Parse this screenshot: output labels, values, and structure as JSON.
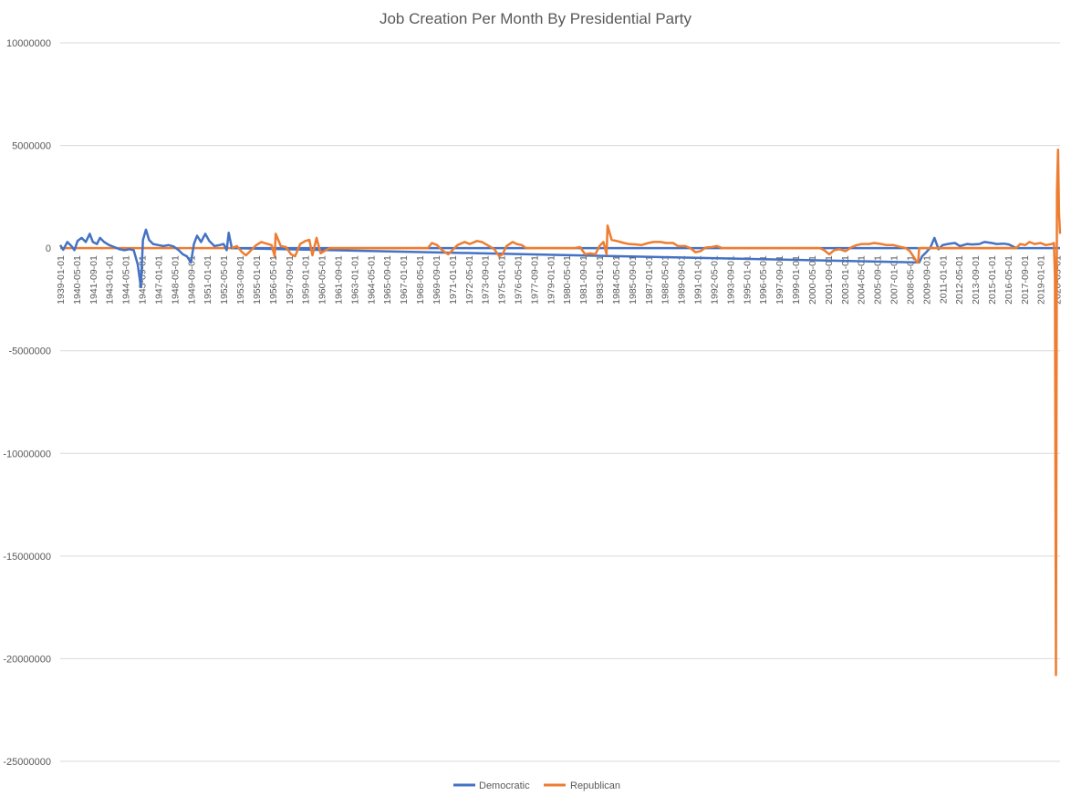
{
  "chart_data": {
    "type": "line",
    "title": "Job Creation Per Month By Presidential Party",
    "xlabel": "",
    "ylabel": "",
    "ylim": [
      -25000000,
      10000000
    ],
    "yticks": [
      10000000,
      5000000,
      0,
      -5000000,
      -10000000,
      -15000000,
      -20000000,
      -25000000
    ],
    "ytick_labels": [
      "10000000",
      "5000000",
      "0",
      "-5000000",
      "-10000000",
      "-15000000",
      "-20000000",
      "-25000000"
    ],
    "x_range": [
      "1939-01-01",
      "2020-07-01"
    ],
    "x_tick_labels": [
      "1939-01-01",
      "1940-05-01",
      "1941-09-01",
      "1943-01-01",
      "1944-05-01",
      "1945-09-01",
      "1947-01-01",
      "1948-05-01",
      "1949-09-01",
      "1951-01-01",
      "1952-05-01",
      "1953-09-01",
      "1955-01-01",
      "1956-05-01",
      "1957-09-01",
      "1959-01-01",
      "1960-05-01",
      "1961-09-01",
      "1963-01-01",
      "1964-05-01",
      "1965-09-01",
      "1967-01-01",
      "1968-05-01",
      "1969-09-01",
      "1971-01-01",
      "1972-05-01",
      "1973-09-01",
      "1975-01-01",
      "1976-05-01",
      "1977-09-01",
      "1979-01-01",
      "1980-05-01",
      "1981-09-01",
      "1983-01-01",
      "1984-05-01",
      "1985-09-01",
      "1987-01-01",
      "1988-05-01",
      "1989-09-01",
      "1991-01-01",
      "1992-05-01",
      "1993-09-01",
      "1995-01-01",
      "1996-05-01",
      "1997-09-01",
      "1999-01-01",
      "2000-05-01",
      "2001-09-01",
      "2003-01-01",
      "2004-05-01",
      "2005-09-01",
      "2007-01-01",
      "2008-05-01",
      "2009-09-01",
      "2011-01-01",
      "2012-05-01",
      "2013-09-01",
      "2015-01-01",
      "2016-05-01",
      "2017-09-01",
      "2019-01-01",
      "2020-05-01"
    ],
    "grid": true,
    "legend_position": "bottom",
    "series": [
      {
        "name": "Democratic",
        "color": "#4472c4",
        "points": [
          [
            "1939-01-01",
            150000
          ],
          [
            "1939-04-01",
            -80000
          ],
          [
            "1939-08-01",
            300000
          ],
          [
            "1939-12-01",
            100000
          ],
          [
            "1940-03-01",
            -100000
          ],
          [
            "1940-06-01",
            350000
          ],
          [
            "1940-10-01",
            500000
          ],
          [
            "1941-02-01",
            300000
          ],
          [
            "1941-06-01",
            700000
          ],
          [
            "1941-09-01",
            300000
          ],
          [
            "1942-01-01",
            200000
          ],
          [
            "1942-04-01",
            500000
          ],
          [
            "1942-08-01",
            300000
          ],
          [
            "1943-01-01",
            150000
          ],
          [
            "1943-06-01",
            50000
          ],
          [
            "1943-11-01",
            -50000
          ],
          [
            "1944-04-01",
            -100000
          ],
          [
            "1944-09-01",
            -50000
          ],
          [
            "1945-01-01",
            -100000
          ],
          [
            "1945-05-01",
            -800000
          ],
          [
            "1945-08-01",
            -1900000
          ],
          [
            "1945-10-01",
            400000
          ],
          [
            "1946-01-01",
            900000
          ],
          [
            "1946-04-01",
            400000
          ],
          [
            "1946-08-01",
            200000
          ],
          [
            "1947-01-01",
            150000
          ],
          [
            "1947-06-01",
            100000
          ],
          [
            "1947-11-01",
            150000
          ],
          [
            "1948-04-01",
            80000
          ],
          [
            "1948-09-01",
            -100000
          ],
          [
            "1949-01-01",
            -300000
          ],
          [
            "1949-05-01",
            -400000
          ],
          [
            "1949-09-01",
            -700000
          ],
          [
            "1949-12-01",
            200000
          ],
          [
            "1950-03-01",
            600000
          ],
          [
            "1950-07-01",
            300000
          ],
          [
            "1950-11-01",
            700000
          ],
          [
            "1951-03-01",
            350000
          ],
          [
            "1951-08-01",
            100000
          ],
          [
            "1952-01-01",
            150000
          ],
          [
            "1952-05-01",
            200000
          ],
          [
            "1952-08-01",
            -100000
          ],
          [
            "1952-10-01",
            750000
          ],
          [
            "1953-01-01",
            0
          ],
          [
            "2009-02-01",
            -700000
          ],
          [
            "2009-05-01",
            -400000
          ],
          [
            "2009-09-01",
            -200000
          ],
          [
            "2010-01-01",
            20000
          ],
          [
            "2010-05-01",
            500000
          ],
          [
            "2010-09-01",
            -50000
          ],
          [
            "2011-01-01",
            150000
          ],
          [
            "2011-06-01",
            200000
          ],
          [
            "2012-01-01",
            250000
          ],
          [
            "2012-06-01",
            100000
          ],
          [
            "2013-01-01",
            200000
          ],
          [
            "2013-06-01",
            180000
          ],
          [
            "2014-01-01",
            200000
          ],
          [
            "2014-06-01",
            300000
          ],
          [
            "2015-01-01",
            250000
          ],
          [
            "2015-06-01",
            200000
          ],
          [
            "2016-01-01",
            220000
          ],
          [
            "2016-06-01",
            180000
          ],
          [
            "2017-01-01",
            0
          ]
        ]
      },
      {
        "name": "Republican",
        "color": "#ed7d31",
        "points": [
          [
            "1953-01-01",
            0
          ],
          [
            "1953-06-01",
            100000
          ],
          [
            "1953-11-01",
            -200000
          ],
          [
            "1954-03-01",
            -350000
          ],
          [
            "1954-08-01",
            -100000
          ],
          [
            "1955-01-01",
            150000
          ],
          [
            "1955-06-01",
            300000
          ],
          [
            "1955-12-01",
            200000
          ],
          [
            "1956-04-01",
            150000
          ],
          [
            "1956-07-01",
            -400000
          ],
          [
            "1956-08-01",
            700000
          ],
          [
            "1957-01-01",
            100000
          ],
          [
            "1957-06-01",
            50000
          ],
          [
            "1957-11-01",
            -300000
          ],
          [
            "1958-03-01",
            -400000
          ],
          [
            "1958-08-01",
            200000
          ],
          [
            "1959-01-01",
            350000
          ],
          [
            "1959-05-01",
            400000
          ],
          [
            "1959-08-01",
            -350000
          ],
          [
            "1959-12-01",
            500000
          ],
          [
            "1960-04-01",
            -250000
          ],
          [
            "1960-09-01",
            -100000
          ],
          [
            "1961-01-01",
            0
          ],
          [
            "1969-01-01",
            0
          ],
          [
            "1969-05-01",
            250000
          ],
          [
            "1969-10-01",
            150000
          ],
          [
            "1970-03-01",
            -100000
          ],
          [
            "1970-09-01",
            -300000
          ],
          [
            "1971-01-01",
            -100000
          ],
          [
            "1971-06-01",
            150000
          ],
          [
            "1972-01-01",
            300000
          ],
          [
            "1972-06-01",
            200000
          ],
          [
            "1973-01-01",
            350000
          ],
          [
            "1973-06-01",
            300000
          ],
          [
            "1974-01-01",
            100000
          ],
          [
            "1974-06-01",
            -50000
          ],
          [
            "1974-11-01",
            -400000
          ],
          [
            "1975-02-01",
            -300000
          ],
          [
            "1975-06-01",
            100000
          ],
          [
            "1975-12-01",
            300000
          ],
          [
            "1976-04-01",
            200000
          ],
          [
            "1976-09-01",
            150000
          ],
          [
            "1977-01-01",
            0
          ],
          [
            "1981-01-01",
            0
          ],
          [
            "1981-06-01",
            50000
          ],
          [
            "1981-11-01",
            -300000
          ],
          [
            "1982-04-01",
            -250000
          ],
          [
            "1982-09-01",
            -300000
          ],
          [
            "1983-01-01",
            100000
          ],
          [
            "1983-05-01",
            300000
          ],
          [
            "1983-08-01",
            -300000
          ],
          [
            "1983-09-01",
            1100000
          ],
          [
            "1984-01-01",
            400000
          ],
          [
            "1984-06-01",
            350000
          ],
          [
            "1985-01-01",
            250000
          ],
          [
            "1985-06-01",
            200000
          ],
          [
            "1986-01-01",
            180000
          ],
          [
            "1986-06-01",
            150000
          ],
          [
            "1987-01-01",
            250000
          ],
          [
            "1987-06-01",
            300000
          ],
          [
            "1988-01-01",
            300000
          ],
          [
            "1988-06-01",
            250000
          ],
          [
            "1989-01-01",
            250000
          ],
          [
            "1989-06-01",
            100000
          ],
          [
            "1990-01-01",
            100000
          ],
          [
            "1990-06-01",
            0
          ],
          [
            "1990-11-01",
            -200000
          ],
          [
            "1991-04-01",
            -150000
          ],
          [
            "1991-09-01",
            30000
          ],
          [
            "1992-03-01",
            50000
          ],
          [
            "1992-08-01",
            100000
          ],
          [
            "1993-01-01",
            0
          ],
          [
            "2001-01-01",
            0
          ],
          [
            "2001-05-01",
            -100000
          ],
          [
            "2001-10-01",
            -300000
          ],
          [
            "2002-03-01",
            -100000
          ],
          [
            "2002-08-01",
            -50000
          ],
          [
            "2003-02-01",
            -150000
          ],
          [
            "2003-08-01",
            50000
          ],
          [
            "2004-01-01",
            150000
          ],
          [
            "2004-06-01",
            200000
          ],
          [
            "2005-01-01",
            200000
          ],
          [
            "2005-06-01",
            250000
          ],
          [
            "2006-01-01",
            200000
          ],
          [
            "2006-06-01",
            150000
          ],
          [
            "2007-01-01",
            150000
          ],
          [
            "2007-06-01",
            80000
          ],
          [
            "2008-01-01",
            0
          ],
          [
            "2008-05-01",
            -150000
          ],
          [
            "2008-09-01",
            -450000
          ],
          [
            "2008-12-01",
            -700000
          ],
          [
            "2009-01-01",
            -700000
          ],
          [
            "2009-02-01",
            0
          ],
          [
            "2017-01-01",
            0
          ],
          [
            "2017-05-01",
            200000
          ],
          [
            "2017-10-01",
            150000
          ],
          [
            "2018-02-01",
            300000
          ],
          [
            "2018-07-01",
            200000
          ],
          [
            "2019-01-01",
            250000
          ],
          [
            "2019-06-01",
            150000
          ],
          [
            "2019-12-01",
            200000
          ],
          [
            "2020-02-01",
            250000
          ],
          [
            "2020-03-01",
            -1400000
          ],
          [
            "2020-04-01",
            -20800000
          ],
          [
            "2020-05-01",
            2700000
          ],
          [
            "2020-06-01",
            4800000
          ],
          [
            "2020-07-01",
            1700000
          ],
          [
            "2020-08-01",
            700000
          ]
        ]
      }
    ],
    "zero_baseline_segments": [
      {
        "series": "Democratic",
        "from": "1953-01-01",
        "to": "1961-01-01"
      },
      {
        "series": "Republican",
        "from": "1961-01-01",
        "to": "1969-01-01"
      },
      {
        "series": "Democratic",
        "from": "1969-01-01",
        "to": "1977-01-01"
      },
      {
        "series": "Republican",
        "from": "1977-01-01",
        "to": "1981-01-01"
      },
      {
        "series": "Democratic",
        "from": "1981-01-01",
        "to": "1993-01-01"
      },
      {
        "series": "Republican",
        "from": "1993-01-01",
        "to": "2001-01-01"
      },
      {
        "series": "Democratic",
        "from": "2001-01-01",
        "to": "2009-01-01"
      },
      {
        "series": "Republican",
        "from": "2009-02-01",
        "to": "2017-01-01"
      },
      {
        "series": "Democratic",
        "from": "2017-01-01",
        "to": "2020-08-01"
      },
      {
        "series": "Republican",
        "from": "1939-01-01",
        "to": "1953-01-01"
      }
    ]
  }
}
